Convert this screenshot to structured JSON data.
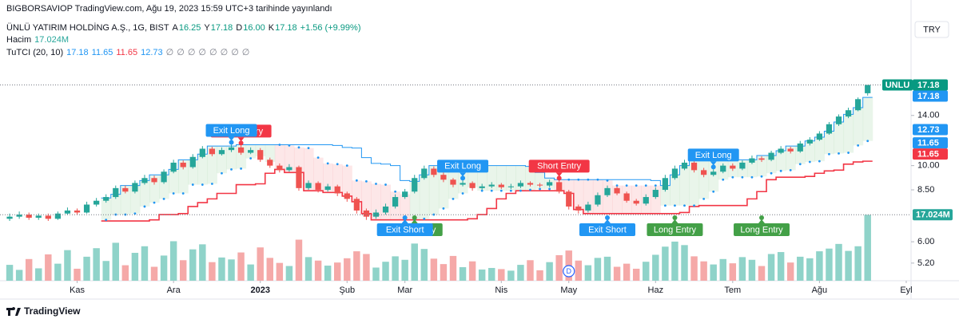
{
  "header": {
    "published": "BIGBORSAVIOP TradingView.com, Ağu 19, 2023 15:59 UTC+3 tarihinde yayınlandı",
    "symbol": "ÜNLÜ YATIRIM HOLDİNG A.Ş., 1G, BIST",
    "ohlc_keys": [
      "A",
      "Y",
      "D",
      "K"
    ],
    "ohlc_values": [
      "16.25",
      "17.18",
      "16.00",
      "17.18"
    ],
    "change": "+1.56 (+9.99%)",
    "volume_label": "Hacim",
    "volume_value": "17.024M",
    "indicator": "TuTCI (20, 10)",
    "indicator_values": [
      "17.18",
      "11.65",
      "11.65",
      "12.73"
    ],
    "indicator_colors": [
      "#2196f3",
      "#2196f3",
      "#f23645",
      "#2196f3"
    ],
    "empty_values": [
      "∅",
      "∅",
      "∅",
      "∅",
      "∅",
      "∅",
      "∅",
      "∅"
    ]
  },
  "currency": "TRY",
  "logo": "TradingView",
  "chart_data": {
    "type": "candlestick",
    "log_scale": true,
    "up_color": "#26a69a",
    "down_color": "#ef5350",
    "volume_up_color": "#8fd3c9",
    "volume_down_color": "#f5a9a8",
    "xlim": [
      -1,
      93.5
    ],
    "ylim": [
      4.62,
      27.0
    ],
    "volume_lim": [
      0,
      17.5
    ],
    "yticks": [
      {
        "value": 14,
        "label": "14.00"
      },
      {
        "value": 10,
        "label": "10.00"
      },
      {
        "value": 8.5,
        "label": "8.50"
      },
      {
        "value": 6,
        "label": "6.00"
      },
      {
        "value": 5.2,
        "label": "5.20"
      }
    ],
    "xticks": [
      {
        "value": 7,
        "label": "Kas"
      },
      {
        "value": 17,
        "label": "Ara"
      },
      {
        "value": 26,
        "label": "2023"
      },
      {
        "value": 35,
        "label": "Şub"
      },
      {
        "value": 41,
        "label": "Mar"
      },
      {
        "value": 51,
        "label": "Nis"
      },
      {
        "value": 58,
        "label": "May"
      },
      {
        "value": 67,
        "label": "Haz"
      },
      {
        "value": 75,
        "label": "Tem"
      },
      {
        "value": 84,
        "label": "Ağu"
      },
      {
        "value": 93,
        "label": "Eyl"
      }
    ],
    "open": [
      7.0,
      7.1,
      7.2,
      7.05,
      7.15,
      7.0,
      7.25,
      7.4,
      7.3,
      7.7,
      7.9,
      8.1,
      8.6,
      8.4,
      8.9,
      9.2,
      8.95,
      9.6,
      10.2,
      9.9,
      10.6,
      11.2,
      10.8,
      11.1,
      11.3,
      10.9,
      11.1,
      10.4,
      10.0,
      9.7,
      9.9,
      8.6,
      8.9,
      8.5,
      8.7,
      8.3,
      8.0,
      7.4,
      7.1,
      7.3,
      7.6,
      8.1,
      8.4,
      9.2,
      9.8,
      9.4,
      9.1,
      8.8,
      8.9,
      8.6,
      8.7,
      8.8,
      8.65,
      8.7,
      8.9,
      8.8,
      8.75,
      8.95,
      8.4,
      7.6,
      7.4,
      7.7,
      8.2,
      8.6,
      8.3,
      7.9,
      7.75,
      8.1,
      8.5,
      9.2,
      9.8,
      10.2,
      9.7,
      9.4,
      9.6,
      10.0,
      9.8,
      10.2,
      10.5,
      10.4,
      10.9,
      11.2,
      11.0,
      11.6,
      11.9,
      12.4,
      13.2,
      13.9,
      14.5,
      16.25
    ],
    "high": [
      7.25,
      7.35,
      7.3,
      7.25,
      7.25,
      7.35,
      7.55,
      7.5,
      7.85,
      8.05,
      8.25,
      8.75,
      8.75,
      9.05,
      9.4,
      9.35,
      9.75,
      10.4,
      10.35,
      10.8,
      11.4,
      11.35,
      11.3,
      11.5,
      11.45,
      11.3,
      11.25,
      10.55,
      10.15,
      10.1,
      10.0,
      9.05,
      9.0,
      8.85,
      8.8,
      8.4,
      8.1,
      7.5,
      7.45,
      7.75,
      8.25,
      8.55,
      9.4,
      10.0,
      9.95,
      9.55,
      9.2,
      9.05,
      9.0,
      8.85,
      8.95,
      8.9,
      8.85,
      9.05,
      9.0,
      8.9,
      9.1,
      9.05,
      8.5,
      7.7,
      7.85,
      8.35,
      8.75,
      8.7,
      8.4,
      8.0,
      8.25,
      8.65,
      9.4,
      10.0,
      10.4,
      10.35,
      9.85,
      9.75,
      10.15,
      10.15,
      10.35,
      10.7,
      10.65,
      11.05,
      11.4,
      11.35,
      11.8,
      12.1,
      12.6,
      13.4,
      14.1,
      14.75,
      15.8,
      17.18
    ],
    "low": [
      6.9,
      7.0,
      6.95,
      6.95,
      6.9,
      6.95,
      7.2,
      7.2,
      7.25,
      7.6,
      7.8,
      8.0,
      8.3,
      8.3,
      8.8,
      8.8,
      8.85,
      9.5,
      9.75,
      9.8,
      10.5,
      10.65,
      10.7,
      10.95,
      10.75,
      10.8,
      10.25,
      9.85,
      9.55,
      9.6,
      8.45,
      8.5,
      8.35,
      8.4,
      8.15,
      7.85,
      7.25,
      6.95,
      7.0,
      7.2,
      7.5,
      8.0,
      8.3,
      9.1,
      9.25,
      8.95,
      8.65,
      8.7,
      8.45,
      8.5,
      8.6,
      8.55,
      8.55,
      8.6,
      8.7,
      8.65,
      8.65,
      8.3,
      7.45,
      7.25,
      7.3,
      7.6,
      8.1,
      8.2,
      7.8,
      7.65,
      7.65,
      8.0,
      8.4,
      9.1,
      9.7,
      9.55,
      9.25,
      9.3,
      9.5,
      9.65,
      9.7,
      10.1,
      10.25,
      10.3,
      10.8,
      10.85,
      10.9,
      11.45,
      11.8,
      12.3,
      13.05,
      13.75,
      14.4,
      16.0
    ],
    "close": [
      7.1,
      7.2,
      7.05,
      7.15,
      7.0,
      7.25,
      7.4,
      7.3,
      7.7,
      7.9,
      8.1,
      8.6,
      8.4,
      8.9,
      9.2,
      8.95,
      9.6,
      10.2,
      9.9,
      10.6,
      11.2,
      10.8,
      11.1,
      11.3,
      10.9,
      11.1,
      10.4,
      10.0,
      9.7,
      9.9,
      8.6,
      8.9,
      8.5,
      8.7,
      8.3,
      8.0,
      7.4,
      7.1,
      7.3,
      7.6,
      8.1,
      8.4,
      9.2,
      9.8,
      9.4,
      9.1,
      8.8,
      8.9,
      8.6,
      8.7,
      8.8,
      8.65,
      8.7,
      8.9,
      8.8,
      8.75,
      8.95,
      8.4,
      7.6,
      7.4,
      7.7,
      8.2,
      8.6,
      8.3,
      7.9,
      7.75,
      8.1,
      8.5,
      9.2,
      9.8,
      10.2,
      9.7,
      9.4,
      9.6,
      10.0,
      9.8,
      10.2,
      10.5,
      10.4,
      10.9,
      11.2,
      11.0,
      11.6,
      11.9,
      12.4,
      13.2,
      13.9,
      14.5,
      15.62,
      17.18
    ],
    "volume": [
      4.1,
      2.8,
      5.6,
      3.2,
      6.8,
      4.4,
      7.9,
      3.1,
      6.2,
      8.4,
      5.1,
      9.8,
      4.0,
      7.2,
      8.9,
      3.6,
      6.5,
      10.2,
      5.3,
      8.1,
      9.4,
      4.8,
      6.0,
      5.5,
      7.3,
      4.2,
      8.6,
      5.9,
      4.6,
      3.8,
      10.6,
      6.1,
      5.2,
      3.9,
      4.7,
      5.8,
      7.6,
      6.9,
      3.4,
      4.9,
      6.3,
      5.4,
      9.6,
      8.2,
      5.7,
      4.3,
      6.4,
      3.5,
      5.0,
      2.9,
      3.3,
      3.0,
      2.6,
      4.1,
      5.3,
      2.7,
      4.8,
      6.6,
      7.8,
      5.2,
      4.0,
      5.9,
      6.2,
      3.6,
      4.4,
      3.1,
      4.9,
      6.7,
      8.8,
      10.1,
      9.2,
      6.3,
      5.0,
      4.2,
      5.6,
      4.5,
      6.1,
      5.4,
      3.8,
      6.9,
      7.4,
      4.7,
      6.2,
      5.8,
      7.6,
      8.3,
      9.5,
      7.7,
      8.9,
      17.024
    ],
    "volume_badge": "17.024M",
    "symbol_badge": "UNLU",
    "price_badges": [
      {
        "value": 17.18,
        "color": "#089981"
      },
      {
        "value": 17.18,
        "color": "#2196f3"
      },
      {
        "value": 12.73,
        "color": "#2196f3"
      },
      {
        "value": 11.65,
        "color": "#2196f3"
      },
      {
        "value": 11.65,
        "color": "#f23645"
      }
    ],
    "annotations": [
      {
        "text": "Short Entry",
        "at": 24,
        "side": "above",
        "color": "#f23645"
      },
      {
        "text": "Exit Long",
        "at": 23,
        "side": "above",
        "color": "#2196f3"
      },
      {
        "text": "Long Entry",
        "at": 42,
        "side": "below",
        "color": "#43a047"
      },
      {
        "text": "Exit Short",
        "at": 41,
        "side": "below",
        "color": "#2196f3"
      },
      {
        "text": "Exit Long",
        "at": 47,
        "side": "above",
        "color": "#2196f3"
      },
      {
        "text": "Short Entry",
        "at": 57,
        "side": "above",
        "color": "#f23645"
      },
      {
        "text": "Exit Short",
        "at": 62,
        "side": "below",
        "color": "#2196f3"
      },
      {
        "text": "Long Entry",
        "at": 69,
        "side": "below",
        "color": "#43a047"
      },
      {
        "text": "Exit Long",
        "at": 73,
        "side": "above",
        "color": "#2196f3"
      },
      {
        "text": "Long Entry",
        "at": 78,
        "side": "below",
        "color": "#43a047"
      }
    ],
    "dividend_marker": {
      "text": "D",
      "at": 58
    }
  }
}
